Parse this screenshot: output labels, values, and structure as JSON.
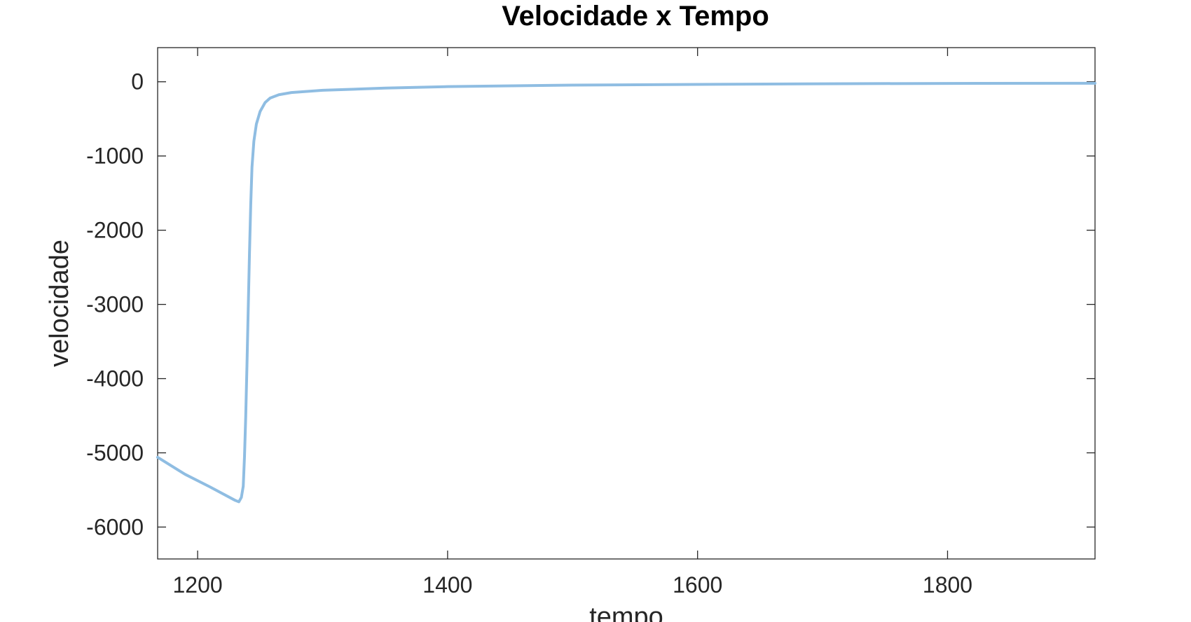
{
  "chart_data": {
    "type": "line",
    "title": "Velocidade x Tempo",
    "xlabel": "tempo",
    "ylabel": "velocidade",
    "xlim": [
      1168,
      1918
    ],
    "ylim": [
      -6430,
      460
    ],
    "xticks": [
      1200,
      1400,
      1600,
      1800
    ],
    "xtick_labels": [
      "1200",
      "1400",
      "1600",
      "1800"
    ],
    "yticks": [
      0,
      -1000,
      -2000,
      -3000,
      -4000,
      -5000,
      -6000
    ],
    "ytick_labels": [
      "0",
      "-1000",
      "-2000",
      "-3000",
      "-4000",
      "-5000",
      "-6000"
    ],
    "grid": false,
    "series": [
      {
        "name": "velocidade",
        "color": "#8fbde2",
        "x": [
          1168,
          1190,
          1210,
          1230,
          1233,
          1235,
          1236.5,
          1237.5,
          1238.5,
          1239.5,
          1240.5,
          1241.5,
          1242.5,
          1243.5,
          1245,
          1247,
          1250,
          1254,
          1258,
          1265,
          1275,
          1300,
          1350,
          1400,
          1500,
          1600,
          1700,
          1800,
          1918
        ],
        "values": [
          -5060,
          -5290,
          -5460,
          -5640,
          -5660,
          -5600,
          -5450,
          -5050,
          -4500,
          -3800,
          -3050,
          -2300,
          -1650,
          -1150,
          -800,
          -570,
          -400,
          -280,
          -220,
          -175,
          -145,
          -115,
          -85,
          -65,
          -45,
          -35,
          -27,
          -22,
          -20
        ]
      }
    ]
  }
}
